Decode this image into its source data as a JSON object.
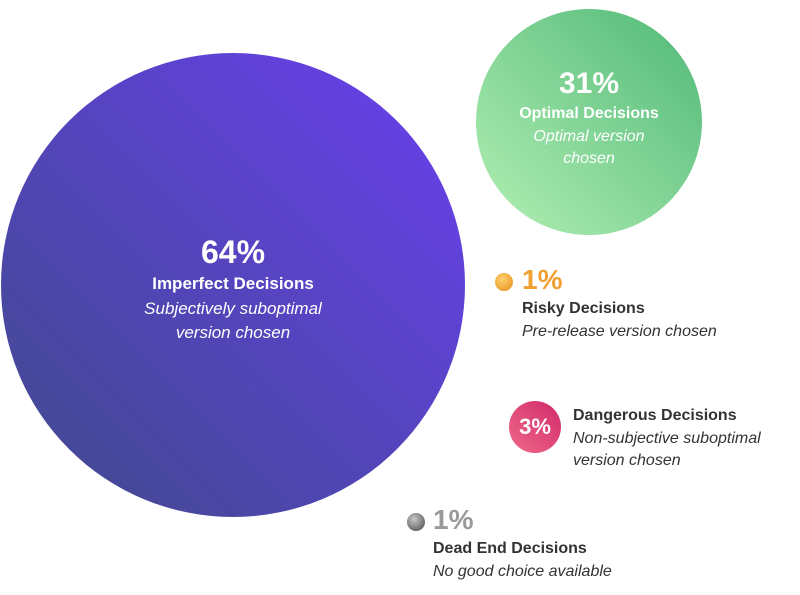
{
  "chart_data": {
    "type": "bubble",
    "items": [
      {
        "value": 64,
        "pct_label": "64%",
        "name": "Imperfect Decisions",
        "description": "Subjectively suboptimal version chosen",
        "color": "#6b3fe6"
      },
      {
        "value": 31,
        "pct_label": "31%",
        "name": "Optimal Decisions",
        "description": "Optimal version chosen",
        "color": "#6cc98a"
      },
      {
        "value": 1,
        "pct_label": "1%",
        "name": "Risky Decisions",
        "description": "Pre-release version chosen",
        "color": "#f0a030"
      },
      {
        "value": 3,
        "pct_label": "3%",
        "name": "Dangerous Decisions",
        "description": "Non-subjective suboptimal version chosen",
        "color": "#e0457b"
      },
      {
        "value": 1,
        "pct_label": "1%",
        "name": "Dead End Decisions",
        "description": "No good choice available",
        "color": "#8a8a8a"
      }
    ]
  }
}
